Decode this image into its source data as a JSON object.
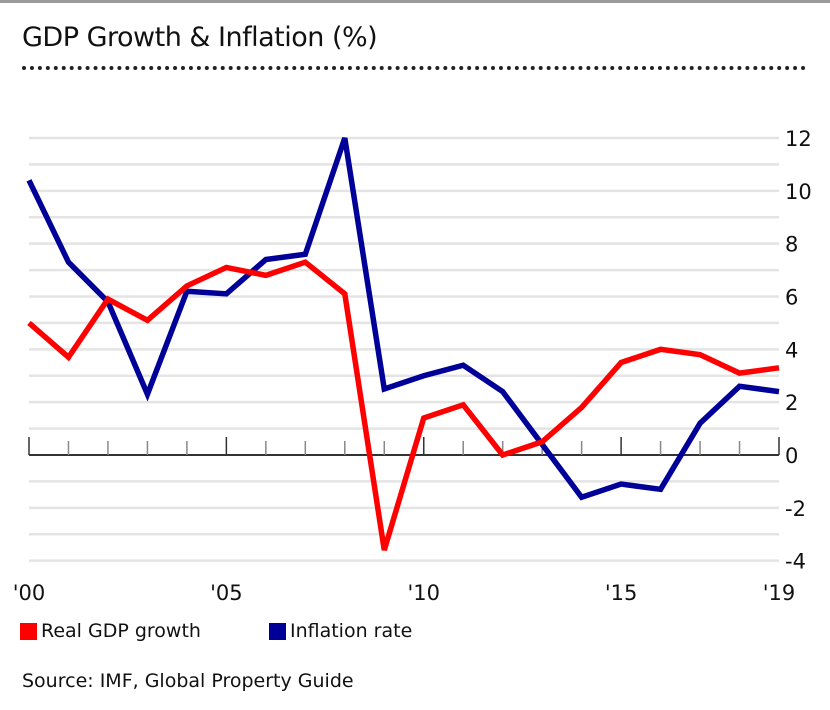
{
  "title": "GDP Growth & Inflation (%)",
  "source": "Source: IMF, Global Property Guide",
  "chart_data": {
    "type": "line",
    "title": "GDP Growth & Inflation (%)",
    "x": [
      2000,
      2001,
      2002,
      2003,
      2004,
      2005,
      2006,
      2007,
      2008,
      2009,
      2010,
      2011,
      2012,
      2013,
      2014,
      2015,
      2016,
      2017,
      2018,
      2019
    ],
    "x_tick_years": [
      2000,
      2005,
      2010,
      2015,
      2019
    ],
    "x_tick_labels": [
      "'00",
      "'05",
      "'10",
      "'15",
      "'19"
    ],
    "y_ticks": [
      12,
      10,
      8,
      6,
      4,
      2,
      0,
      -2,
      -4
    ],
    "ylim": [
      -4,
      12
    ],
    "y_axis_side": "right",
    "grid": true,
    "legend_position": "bottom-left",
    "series": [
      {
        "name": "Real GDP growth",
        "color": "#ff0000",
        "values": [
          5.0,
          3.7,
          5.9,
          5.1,
          6.4,
          7.1,
          6.8,
          7.3,
          6.1,
          -3.6,
          1.4,
          1.9,
          0.0,
          0.5,
          1.8,
          3.5,
          4.0,
          3.8,
          3.1,
          3.3
        ]
      },
      {
        "name": "Inflation rate",
        "color": "#000099",
        "values": [
          10.4,
          7.3,
          5.8,
          2.3,
          6.2,
          6.1,
          7.4,
          7.6,
          12.0,
          2.5,
          3.0,
          3.4,
          2.4,
          0.4,
          -1.6,
          -1.1,
          -1.3,
          1.2,
          2.6,
          2.4
        ]
      }
    ]
  }
}
